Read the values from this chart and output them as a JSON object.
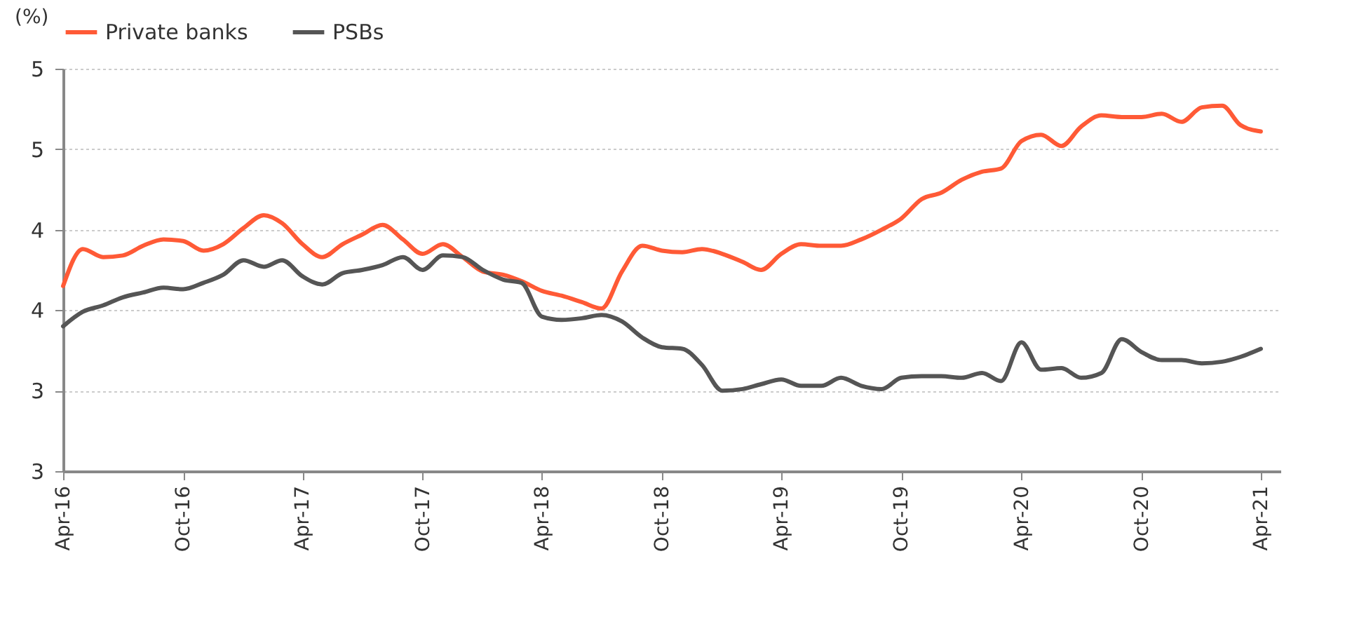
{
  "chart_data": {
    "type": "line",
    "ylabel": "(%)",
    "x": [
      "2016-04",
      "2016-05",
      "2016-06",
      "2016-07",
      "2016-08",
      "2016-09",
      "2016-10",
      "2016-11",
      "2016-12",
      "2017-01",
      "2017-02",
      "2017-03",
      "2017-04",
      "2017-05",
      "2017-06",
      "2017-07",
      "2017-08",
      "2017-09",
      "2017-10",
      "2017-11",
      "2017-12",
      "2018-01",
      "2018-02",
      "2018-03",
      "2018-04",
      "2018-05",
      "2018-06",
      "2018-07",
      "2018-08",
      "2018-09",
      "2018-10",
      "2018-11",
      "2018-12",
      "2019-01",
      "2019-02",
      "2019-03",
      "2019-04",
      "2019-05",
      "2019-06",
      "2019-07",
      "2019-08",
      "2019-09",
      "2019-10",
      "2019-11",
      "2019-12",
      "2020-01",
      "2020-02",
      "2020-03",
      "2020-04",
      "2020-05",
      "2020-06",
      "2020-07",
      "2020-08",
      "2020-09",
      "2020-10",
      "2020-11",
      "2020-12",
      "2021-01",
      "2021-02",
      "2021-03",
      "2021-04"
    ],
    "series": [
      {
        "name": "Private banks",
        "color": "#ff5a36",
        "values": [
          4.15,
          4.38,
          4.33,
          4.34,
          4.4,
          4.44,
          4.43,
          4.37,
          4.41,
          4.51,
          4.59,
          4.54,
          4.41,
          4.33,
          4.41,
          4.47,
          4.53,
          4.44,
          4.35,
          4.41,
          4.33,
          4.24,
          4.22,
          4.18,
          4.12,
          4.09,
          4.05,
          4.01,
          4.24,
          4.4,
          4.37,
          4.36,
          4.38,
          4.35,
          4.3,
          4.25,
          4.35,
          4.41,
          4.4,
          4.4,
          4.44,
          4.5,
          4.57,
          4.69,
          4.73,
          4.81,
          4.86,
          4.88,
          5.05,
          5.09,
          5.02,
          5.14,
          5.21,
          5.2,
          5.2,
          5.22,
          5.17,
          5.26,
          5.27,
          5.15,
          5.11
        ]
      },
      {
        "name": "PSBs",
        "color": "#555555",
        "values": [
          3.9,
          3.99,
          4.03,
          4.08,
          4.11,
          4.14,
          4.13,
          4.17,
          4.22,
          4.31,
          4.27,
          4.31,
          4.21,
          4.16,
          4.23,
          4.25,
          4.28,
          4.33,
          4.25,
          4.34,
          4.33,
          4.25,
          4.19,
          4.17,
          3.96,
          3.94,
          3.95,
          3.97,
          3.93,
          3.83,
          3.77,
          3.76,
          3.66,
          3.5,
          3.51,
          3.54,
          3.57,
          3.53,
          3.53,
          3.58,
          3.53,
          3.51,
          3.58,
          3.59,
          3.59,
          3.58,
          3.61,
          3.56,
          3.8,
          3.63,
          3.64,
          3.58,
          3.61,
          3.82,
          3.74,
          3.69,
          3.69,
          3.67,
          3.68,
          3.71,
          3.76
        ]
      }
    ],
    "xlim": [
      "2016-04",
      "2021-05"
    ],
    "xticks": [
      {
        "value": "2016-04",
        "label": "Apr-16"
      },
      {
        "value": "2016-10",
        "label": "Oct-16"
      },
      {
        "value": "2017-04",
        "label": "Apr-17"
      },
      {
        "value": "2017-10",
        "label": "Oct-17"
      },
      {
        "value": "2018-04",
        "label": "Apr-18"
      },
      {
        "value": "2018-10",
        "label": "Oct-18"
      },
      {
        "value": "2019-04",
        "label": "Apr-19"
      },
      {
        "value": "2019-10",
        "label": "Oct-19"
      },
      {
        "value": "2020-04",
        "label": "Apr-20"
      },
      {
        "value": "2020-10",
        "label": "Oct-20"
      },
      {
        "value": "2021-04",
        "label": "Apr-21"
      }
    ],
    "ylim": [
      3,
      5.5
    ],
    "yticks": [
      {
        "value": 3,
        "label": "3"
      },
      {
        "value": 3.5,
        "label": "3"
      },
      {
        "value": 4,
        "label": "4"
      },
      {
        "value": 4.5,
        "label": "4"
      },
      {
        "value": 5,
        "label": "5"
      },
      {
        "value": 5.5,
        "label": "5"
      }
    ],
    "grid": "y",
    "legend": "top",
    "marker": "none",
    "line_style": "solid"
  }
}
